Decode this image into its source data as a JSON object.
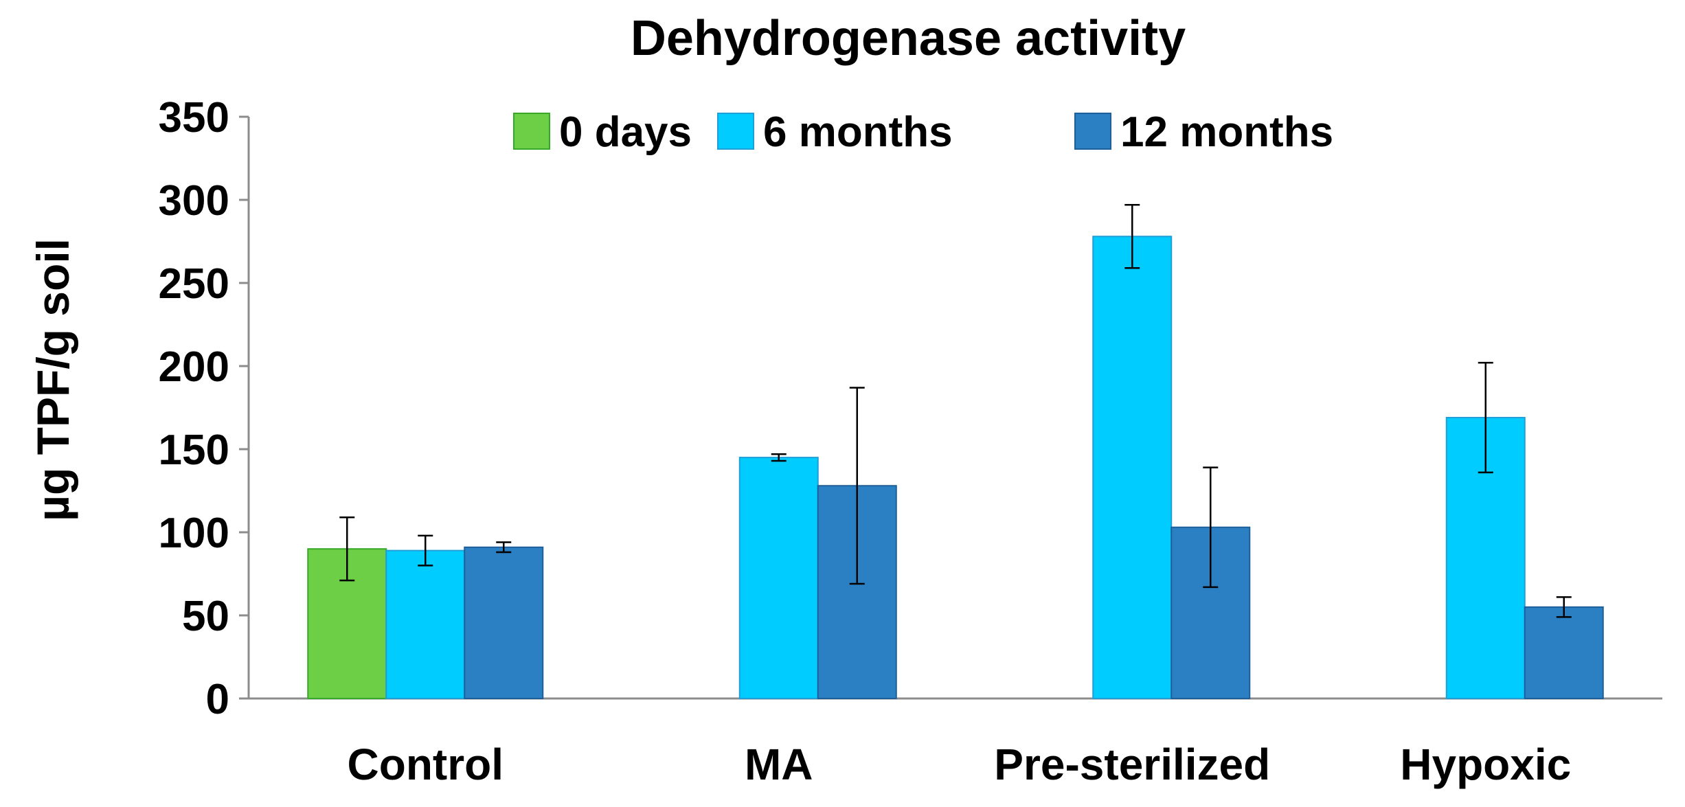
{
  "chart_data": {
    "type": "bar",
    "title": "Dehydrogenase activity",
    "ylabel": "µg TPF/g soil",
    "xlabel": "",
    "ylim": [
      0,
      350
    ],
    "yticks": [
      0,
      50,
      100,
      150,
      200,
      250,
      300,
      350
    ],
    "categories": [
      "Control",
      "MA",
      "Pre-sterilized",
      "Hypoxic"
    ],
    "legend_position": "top",
    "series": [
      {
        "name": "0 days",
        "color": "#6ccf45",
        "stroke": "#38a82a",
        "values": [
          90,
          null,
          null,
          null
        ],
        "errors": [
          19,
          null,
          null,
          null
        ]
      },
      {
        "name": "6 months",
        "color": "#00ccff",
        "stroke": "#1f9fd6",
        "values": [
          89,
          145,
          278,
          169
        ],
        "errors": [
          9,
          2,
          19,
          33
        ]
      },
      {
        "name": "12 months",
        "color": "#2a80c2",
        "stroke": "#1f5f99",
        "values": [
          91,
          128,
          103,
          55
        ],
        "errors": [
          3,
          59,
          36,
          6
        ]
      }
    ]
  }
}
